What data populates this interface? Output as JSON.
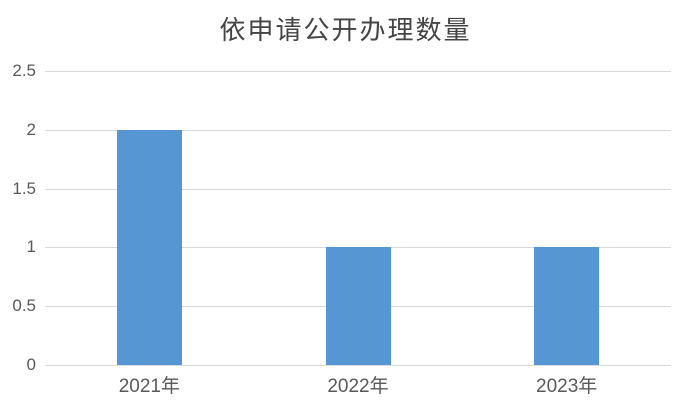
{
  "chart_data": {
    "type": "bar",
    "title": "依申请公开办理数量",
    "categories": [
      "2021年",
      "2022年",
      "2023年"
    ],
    "values": [
      2,
      1,
      1
    ],
    "xlabel": "",
    "ylabel": "",
    "ylim": [
      0,
      2.5
    ],
    "yticks": [
      0,
      0.5,
      1,
      1.5,
      2,
      2.5
    ],
    "grid": true,
    "legend": false,
    "colors": {
      "bar": "#5596d3",
      "gridline": "#d9d9d9",
      "axis_line": "#d9d9d9",
      "axis_text": "#595959",
      "title": "#444444",
      "background": "#ffffff"
    }
  }
}
